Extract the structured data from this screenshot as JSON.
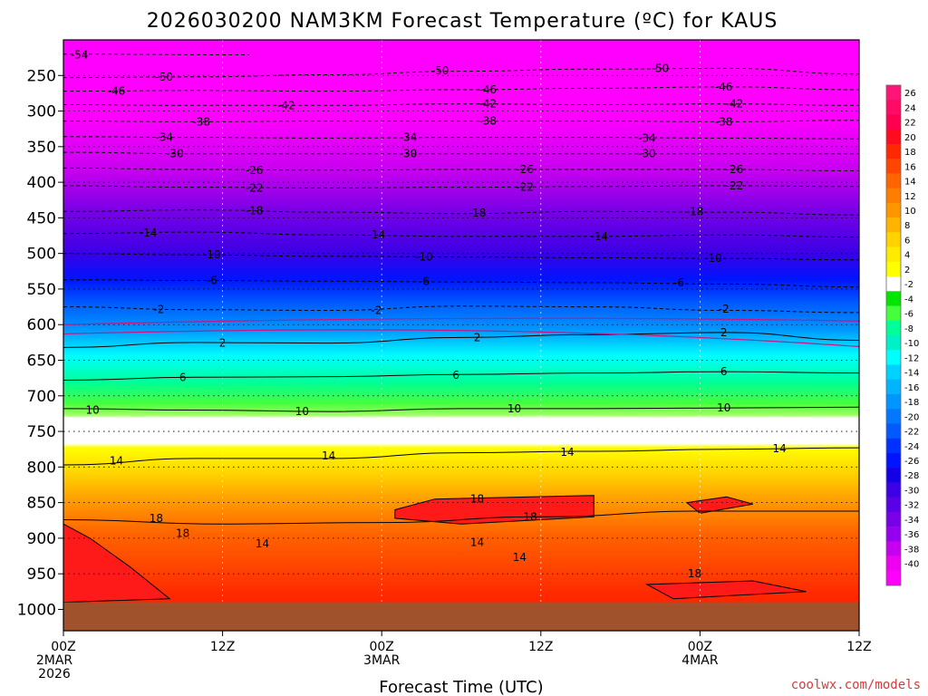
{
  "chart_data": {
    "type": "heatmap",
    "title": "2026030200 NAM3KM Forecast Temperature (ºC) for KAUS",
    "xlabel": "Forecast Time (UTC)",
    "ylabel": "",
    "credit": "coolwx.com/models",
    "x_ticks": [
      {
        "hours": 0,
        "lines": [
          "00Z",
          "2MAR",
          "2026"
        ]
      },
      {
        "hours": 12,
        "lines": [
          "12Z"
        ]
      },
      {
        "hours": 24,
        "lines": [
          "00Z",
          "3MAR"
        ]
      },
      {
        "hours": 36,
        "lines": [
          "12Z"
        ]
      },
      {
        "hours": 48,
        "lines": [
          "00Z",
          "4MAR"
        ]
      },
      {
        "hours": 60,
        "lines": [
          "12Z"
        ]
      }
    ],
    "xlim_hours": [
      0,
      60
    ],
    "y_ticks": [
      250,
      300,
      350,
      400,
      450,
      500,
      550,
      600,
      650,
      700,
      750,
      800,
      850,
      900,
      950,
      1000
    ],
    "ylim_hpa": [
      200,
      1030
    ],
    "grid": true,
    "ground_pressure_hpa": 990,
    "colorbar": {
      "levels": [
        26,
        24,
        22,
        20,
        18,
        16,
        14,
        12,
        10,
        8,
        6,
        4,
        2,
        -2,
        -4,
        -6,
        -8,
        -10,
        -12,
        -14,
        -16,
        -18,
        -20,
        -22,
        -24,
        -26,
        -28,
        -30,
        -32,
        -34,
        -36,
        -38,
        -40
      ],
      "colors": [
        "#ff1478",
        "#ff0a64",
        "#ff0050",
        "#ff0a1e",
        "#ff2800",
        "#ff4600",
        "#ff6400",
        "#ff7d00",
        "#ff9600",
        "#ffb400",
        "#ffd200",
        "#ffeb00",
        "#ffff00",
        "#ffffff",
        "#00e600",
        "#46ff3c",
        "#00ff96",
        "#00f0c8",
        "#00ffff",
        "#00d2ff",
        "#00b4ff",
        "#0096ff",
        "#0078ff",
        "#005aff",
        "#0032ff",
        "#0014ff",
        "#1400e6",
        "#3c00e6",
        "#5a00e6",
        "#7800e6",
        "#9600f0",
        "#c800f0",
        "#f000f0",
        "#ff00ff"
      ]
    },
    "isotherms": [
      {
        "value": -54,
        "label": "-54",
        "points": [
          [
            0,
            220
          ],
          [
            14,
            221
          ]
        ]
      },
      {
        "value": -50,
        "label": "-50",
        "points": [
          [
            0,
            253
          ],
          [
            10,
            252
          ],
          [
            20,
            249
          ],
          [
            30,
            244
          ],
          [
            40,
            241
          ],
          [
            50,
            240
          ],
          [
            60,
            248
          ]
        ]
      },
      {
        "value": -46,
        "label": "-46",
        "points": [
          [
            0,
            272
          ],
          [
            10,
            271
          ],
          [
            20,
            272
          ],
          [
            30,
            270
          ],
          [
            40,
            268
          ],
          [
            50,
            266
          ],
          [
            60,
            270
          ]
        ]
      },
      {
        "value": -42,
        "label": "-42",
        "points": [
          [
            0,
            291
          ],
          [
            10,
            292
          ],
          [
            20,
            292
          ],
          [
            30,
            290
          ],
          [
            40,
            291
          ],
          [
            50,
            290
          ],
          [
            60,
            292
          ]
        ]
      },
      {
        "value": -38,
        "label": "-38",
        "points": [
          [
            0,
            314
          ],
          [
            10,
            315
          ],
          [
            20,
            314
          ],
          [
            30,
            314
          ],
          [
            40,
            314
          ],
          [
            50,
            315
          ],
          [
            60,
            313
          ]
        ]
      },
      {
        "value": -34,
        "label": "-34",
        "points": [
          [
            0,
            336
          ],
          [
            10,
            337
          ],
          [
            20,
            338
          ],
          [
            30,
            337
          ],
          [
            40,
            337
          ],
          [
            50,
            338
          ],
          [
            60,
            339
          ]
        ]
      },
      {
        "value": -30,
        "label": "-30",
        "points": [
          [
            0,
            358
          ],
          [
            10,
            360
          ],
          [
            20,
            360
          ],
          [
            30,
            360
          ],
          [
            40,
            360
          ],
          [
            50,
            360
          ],
          [
            60,
            360
          ]
        ]
      },
      {
        "value": -26,
        "label": "-26",
        "points": [
          [
            0,
            380
          ],
          [
            10,
            382
          ],
          [
            20,
            383
          ],
          [
            30,
            382
          ],
          [
            40,
            382
          ],
          [
            50,
            382
          ],
          [
            60,
            384
          ]
        ]
      },
      {
        "value": -22,
        "label": "-22",
        "points": [
          [
            0,
            405
          ],
          [
            10,
            407
          ],
          [
            20,
            408
          ],
          [
            30,
            407
          ],
          [
            40,
            406
          ],
          [
            50,
            405
          ],
          [
            60,
            406
          ]
        ]
      },
      {
        "value": -18,
        "label": "-18",
        "points": [
          [
            0,
            441
          ],
          [
            10,
            439
          ],
          [
            20,
            442
          ],
          [
            30,
            444
          ],
          [
            40,
            441
          ],
          [
            50,
            442
          ],
          [
            60,
            446
          ]
        ]
      },
      {
        "value": -14,
        "label": "-14",
        "points": [
          [
            0,
            472
          ],
          [
            10,
            470
          ],
          [
            20,
            474
          ],
          [
            30,
            476
          ],
          [
            40,
            476
          ],
          [
            50,
            474
          ],
          [
            60,
            477
          ]
        ]
      },
      {
        "value": -10,
        "label": "-10",
        "points": [
          [
            0,
            500
          ],
          [
            10,
            502
          ],
          [
            20,
            504
          ],
          [
            30,
            505
          ],
          [
            40,
            506
          ],
          [
            50,
            507
          ],
          [
            60,
            509
          ]
        ]
      },
      {
        "value": -6,
        "label": "-6",
        "points": [
          [
            0,
            537
          ],
          [
            10,
            538
          ],
          [
            20,
            539
          ],
          [
            30,
            540
          ],
          [
            40,
            541
          ],
          [
            50,
            543
          ],
          [
            60,
            547
          ]
        ]
      },
      {
        "value": -2,
        "label": "-2",
        "points": [
          [
            0,
            575
          ],
          [
            10,
            579
          ],
          [
            20,
            580
          ],
          [
            30,
            574
          ],
          [
            40,
            575
          ],
          [
            50,
            580
          ],
          [
            60,
            583
          ]
        ]
      },
      {
        "value": 2,
        "label": "2",
        "points": [
          [
            0,
            632
          ],
          [
            10,
            625
          ],
          [
            20,
            626
          ],
          [
            30,
            618
          ],
          [
            40,
            614
          ],
          [
            50,
            611
          ],
          [
            60,
            622
          ]
        ]
      },
      {
        "value": 6,
        "label": "6",
        "points": [
          [
            0,
            678
          ],
          [
            10,
            674
          ],
          [
            20,
            673
          ],
          [
            30,
            670
          ],
          [
            40,
            668
          ],
          [
            50,
            666
          ],
          [
            60,
            668
          ]
        ]
      },
      {
        "value": 10,
        "label": "10",
        "points": [
          [
            0,
            718
          ],
          [
            10,
            720
          ],
          [
            20,
            722
          ],
          [
            30,
            718
          ],
          [
            40,
            718
          ],
          [
            50,
            717
          ],
          [
            60,
            716
          ]
        ]
      },
      {
        "value": 14,
        "label": "14",
        "points": [
          [
            0,
            797
          ],
          [
            10,
            788
          ],
          [
            20,
            788
          ],
          [
            30,
            780
          ],
          [
            40,
            778
          ],
          [
            50,
            775
          ],
          [
            60,
            773
          ]
        ]
      },
      {
        "value": 18,
        "label": "18",
        "points": [
          [
            0,
            874
          ],
          [
            12,
            880
          ],
          [
            24,
            878
          ],
          [
            36,
            870
          ],
          [
            48,
            862
          ],
          [
            60,
            862
          ]
        ]
      }
    ],
    "isotherm_labels": [
      {
        "label": "-54",
        "x": 1.2,
        "y": 221
      },
      {
        "label": "-50",
        "x": 7.6,
        "y": 252
      },
      {
        "label": "-50",
        "x": 28.4,
        "y": 243
      },
      {
        "label": "-50",
        "x": 45.0,
        "y": 240
      },
      {
        "label": "-46",
        "x": 4.0,
        "y": 272
      },
      {
        "label": "-46",
        "x": 32.0,
        "y": 270
      },
      {
        "label": "-46",
        "x": 49.8,
        "y": 266
      },
      {
        "label": "-42",
        "x": 16.8,
        "y": 292
      },
      {
        "label": "-42",
        "x": 32.0,
        "y": 290
      },
      {
        "label": "-42",
        "x": 50.6,
        "y": 290
      },
      {
        "label": "-38",
        "x": 10.4,
        "y": 315
      },
      {
        "label": "-38",
        "x": 32.0,
        "y": 314
      },
      {
        "label": "-38",
        "x": 49.8,
        "y": 315
      },
      {
        "label": "-34",
        "x": 7.6,
        "y": 337
      },
      {
        "label": "-34",
        "x": 26.0,
        "y": 337
      },
      {
        "label": "-34",
        "x": 44.0,
        "y": 338
      },
      {
        "label": "-30",
        "x": 8.4,
        "y": 360
      },
      {
        "label": "-30",
        "x": 26.0,
        "y": 360
      },
      {
        "label": "-30",
        "x": 44.0,
        "y": 360
      },
      {
        "label": "-26",
        "x": 14.4,
        "y": 383
      },
      {
        "label": "-26",
        "x": 34.8,
        "y": 382
      },
      {
        "label": "-26",
        "x": 50.6,
        "y": 382
      },
      {
        "label": "-22",
        "x": 14.4,
        "y": 408
      },
      {
        "label": "-22",
        "x": 34.8,
        "y": 407
      },
      {
        "label": "-22",
        "x": 50.6,
        "y": 405
      },
      {
        "label": "-18",
        "x": 14.4,
        "y": 440
      },
      {
        "label": "-18",
        "x": 31.2,
        "y": 443
      },
      {
        "label": "-18",
        "x": 47.6,
        "y": 441
      },
      {
        "label": "-14",
        "x": 6.4,
        "y": 471
      },
      {
        "label": "-14",
        "x": 23.6,
        "y": 474
      },
      {
        "label": "-14",
        "x": 40.4,
        "y": 476
      },
      {
        "label": "-10",
        "x": 11.2,
        "y": 502
      },
      {
        "label": "-10",
        "x": 27.2,
        "y": 505
      },
      {
        "label": "-10",
        "x": 49.0,
        "y": 507
      },
      {
        "label": "-6",
        "x": 11.2,
        "y": 538
      },
      {
        "label": "-6",
        "x": 27.2,
        "y": 539
      },
      {
        "label": "-6",
        "x": 46.4,
        "y": 541
      },
      {
        "label": "-2",
        "x": 7.2,
        "y": 579
      },
      {
        "label": "-2",
        "x": 23.6,
        "y": 580
      },
      {
        "label": "-2",
        "x": 49.8,
        "y": 578
      },
      {
        "label": "2",
        "x": 12.0,
        "y": 626
      },
      {
        "label": "2",
        "x": 31.2,
        "y": 618
      },
      {
        "label": "2",
        "x": 49.8,
        "y": 611
      },
      {
        "label": "6",
        "x": 9.0,
        "y": 674
      },
      {
        "label": "6",
        "x": 29.6,
        "y": 671
      },
      {
        "label": "6",
        "x": 49.8,
        "y": 666
      },
      {
        "label": "10",
        "x": 2.2,
        "y": 720
      },
      {
        "label": "10",
        "x": 18.0,
        "y": 722
      },
      {
        "label": "10",
        "x": 34.0,
        "y": 718
      },
      {
        "label": "10",
        "x": 49.8,
        "y": 717
      },
      {
        "label": "14",
        "x": 4.0,
        "y": 791
      },
      {
        "label": "14",
        "x": 20.0,
        "y": 784
      },
      {
        "label": "14",
        "x": 38.0,
        "y": 779
      },
      {
        "label": "14",
        "x": 54.0,
        "y": 774
      },
      {
        "label": "14",
        "x": 15.0,
        "y": 908
      },
      {
        "label": "14",
        "x": 31.2,
        "y": 906
      },
      {
        "label": "14",
        "x": 34.4,
        "y": 927
      },
      {
        "label": "18",
        "x": 7.0,
        "y": 872
      },
      {
        "label": "18",
        "x": 9.0,
        "y": 893
      },
      {
        "label": "18",
        "x": 31.2,
        "y": 845
      },
      {
        "label": "18",
        "x": 35.2,
        "y": 870
      },
      {
        "label": "18",
        "x": 47.6,
        "y": 950
      }
    ]
  }
}
